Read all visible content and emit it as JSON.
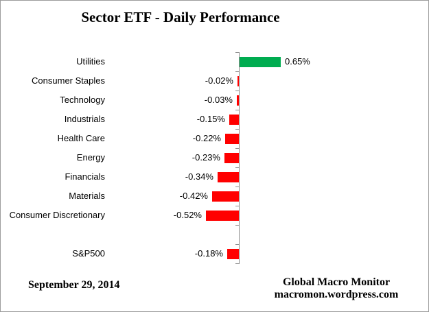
{
  "title": "Sector ETF - Daily Performance",
  "footer": {
    "date": "September 29, 2014",
    "source_line1": "Global Macro Monitor",
    "source_line2": "macromon.wordpress.com"
  },
  "chart_data": {
    "type": "bar",
    "orientation": "horizontal",
    "title": "Sector ETF - Daily Performance",
    "xlabel": "",
    "ylabel": "",
    "categories": [
      "Utilities",
      "Consumer Staples",
      "Technology",
      "Industrials",
      "Health Care",
      "Energy",
      "Financials",
      "Materials",
      "Consumer Discretionary",
      "",
      "S&P500"
    ],
    "values": [
      0.65,
      -0.02,
      -0.03,
      -0.15,
      -0.22,
      -0.23,
      -0.34,
      -0.42,
      -0.52,
      null,
      -0.18
    ],
    "value_labels": [
      "0.65%",
      "-0.02%",
      "-0.03%",
      "-0.15%",
      "-0.22%",
      "-0.23%",
      "-0.34%",
      "-0.42%",
      "-0.52%",
      "",
      "-0.18%"
    ],
    "value_label_position": "outside-end",
    "xlim": [
      -0.6,
      0.7
    ],
    "grid": false,
    "legend": false,
    "positive_color": "#00ac50",
    "negative_color": "#ff0000",
    "axis_color": "#8c8c8c"
  }
}
